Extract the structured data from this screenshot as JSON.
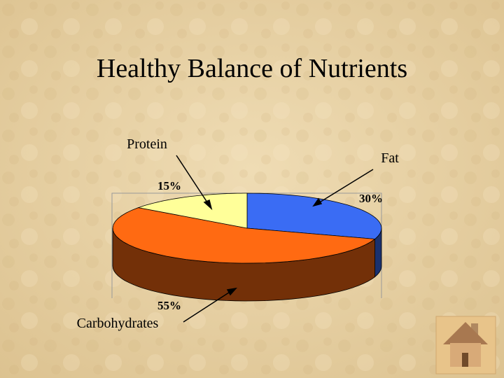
{
  "title": "Healthy Balance of Nutrients",
  "chart_data": {
    "type": "pie3d",
    "categories": [
      "Fat",
      "Carbohydrates",
      "Protein"
    ],
    "values": [
      30,
      55,
      15
    ],
    "value_labels": [
      "30%",
      "55%",
      "15%"
    ],
    "colors": [
      "#3a6cf4",
      "#ff6a12",
      "#ffff99"
    ]
  }
}
